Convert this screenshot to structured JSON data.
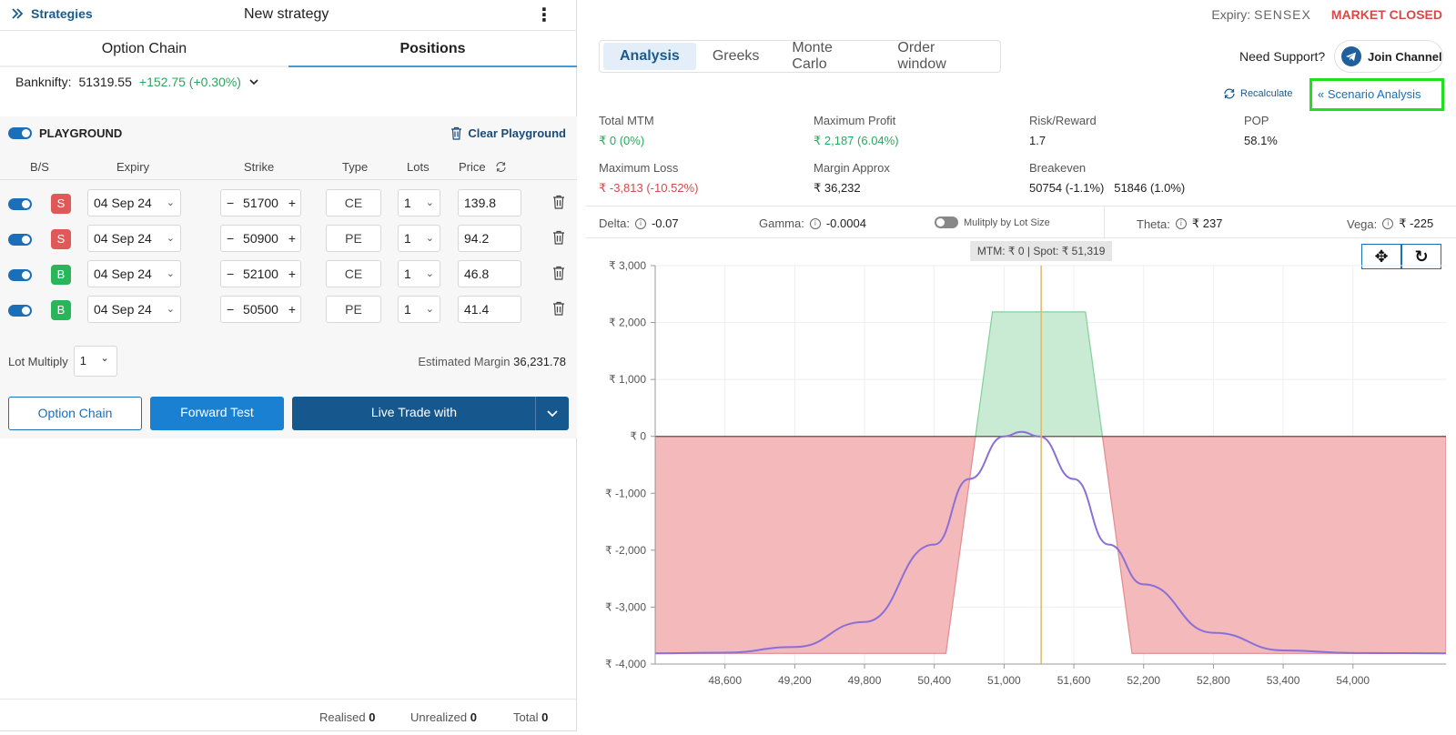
{
  "topbar": {
    "strategies_label": "Strategies",
    "title": "New strategy"
  },
  "left_tabs": [
    "Option Chain",
    "Positions"
  ],
  "ticker": {
    "label": "Banknifty:",
    "value": "51319.55",
    "change": "+152.75 (+0.30%)"
  },
  "playground": {
    "title": "PLAYGROUND",
    "clear_label": "Clear Playground",
    "columns": [
      "B/S",
      "Expiry",
      "Strike",
      "Type",
      "Lots",
      "Price"
    ],
    "positions": [
      {
        "side": "S",
        "expiry": "04 Sep 24",
        "strike": "51700",
        "type": "CE",
        "lots": "1",
        "price": "139.8"
      },
      {
        "side": "S",
        "expiry": "04 Sep 24",
        "strike": "50900",
        "type": "PE",
        "lots": "1",
        "price": "94.2"
      },
      {
        "side": "B",
        "expiry": "04 Sep 24",
        "strike": "52100",
        "type": "CE",
        "lots": "1",
        "price": "46.8"
      },
      {
        "side": "B",
        "expiry": "04 Sep 24",
        "strike": "50500",
        "type": "PE",
        "lots": "1",
        "price": "41.4"
      }
    ],
    "lot_multiply_label": "Lot Multiply",
    "lot_multiply_value": "1",
    "estimated_margin_label": "Estimated Margin",
    "estimated_margin_value": "36,231.78",
    "buttons": {
      "option_chain": "Option Chain",
      "forward_test": "Forward Test",
      "live_trade": "Live Trade with"
    }
  },
  "footer": {
    "realised_label": "Realised",
    "realised": "0",
    "unrealized_label": "Unrealized",
    "unrealized": "0",
    "total_label": "Total",
    "total": "0"
  },
  "right": {
    "expiry_label": "Expiry:",
    "expiry_value": "SENSEX",
    "market_status": "MARKET CLOSED",
    "tabs": [
      "Analysis",
      "Greeks",
      "Monte Carlo",
      "Order window"
    ],
    "support_label": "Need Support?",
    "join_label": "Join Channel",
    "recalc_label": "Recalculate",
    "scenario_label": "Scenario Analysis",
    "stats": {
      "total_mtm": {
        "label": "Total MTM",
        "value": "₹ 0 (0%)"
      },
      "max_profit": {
        "label": "Maximum Profit",
        "value": "₹ 2,187 (6.04%)"
      },
      "risk_reward": {
        "label": "Risk/Reward",
        "value": "1.7"
      },
      "pop": {
        "label": "POP",
        "value": "58.1%"
      },
      "max_loss": {
        "label": "Maximum Loss",
        "value": "₹ -3,813 (-10.52%)"
      },
      "margin": {
        "label": "Margin Approx",
        "value": "₹ 36,232"
      },
      "breakeven": {
        "label": "Breakeven",
        "value": "50754 (-1.1%)   51846 (1.0%)"
      }
    },
    "greeks": {
      "delta_label": "Delta:",
      "delta": "-0.07",
      "gamma_label": "Gamma:",
      "gamma": "-0.0004",
      "multiply_label": "Mulitply by Lot Size",
      "theta_label": "Theta:",
      "theta": "₹ 237",
      "vega_label": "Vega:",
      "vega": "₹ -225"
    }
  },
  "colors": {
    "accent": "#1a6fb8",
    "profit_fill": "#c9ebd3",
    "loss_fill": "#f3b9bb",
    "curve": "#8a6fd8",
    "spot_line": "#e0b86a"
  },
  "chart_data": {
    "type": "area",
    "tooltip": "MTM: ₹ 0  |  Spot: ₹ 51,319",
    "xlim": [
      48000,
      54800
    ],
    "ylim": [
      -4000,
      3000
    ],
    "xticks": [
      "48,600",
      "49,200",
      "49,800",
      "50,400",
      "51,000",
      "51,600",
      "52,200",
      "52,800",
      "53,400",
      "54,000"
    ],
    "xtick_values": [
      48600,
      49200,
      49800,
      50400,
      51000,
      51600,
      52200,
      52800,
      53400,
      54000
    ],
    "yticks": [
      "₹ 3,000",
      "₹ 2,000",
      "₹ 1,000",
      "₹ 0",
      "₹ -1,000",
      "₹ -2,000",
      "₹ -3,000",
      "₹ -4,000"
    ],
    "ytick_values": [
      3000,
      2000,
      1000,
      0,
      -1000,
      -2000,
      -3000,
      -4000
    ],
    "spot": 51319,
    "series": [
      {
        "x": [
          48000,
          50500,
          50900,
          51700,
          52100,
          54800
        ],
        "y": [
          -3813,
          -3813,
          2187,
          2187,
          -3813,
          -3813
        ]
      },
      {
        "x": [
          48000,
          48600,
          49200,
          49800,
          50400,
          50700,
          51000,
          51150,
          51300,
          51600,
          51900,
          52200,
          52800,
          53400,
          54000,
          54800
        ],
        "y": [
          -3812,
          -3800,
          -3700,
          -3260,
          -1900,
          -750,
          0,
          80,
          0,
          -750,
          -1900,
          -2600,
          -3450,
          -3760,
          -3806,
          -3812
        ]
      }
    ]
  }
}
